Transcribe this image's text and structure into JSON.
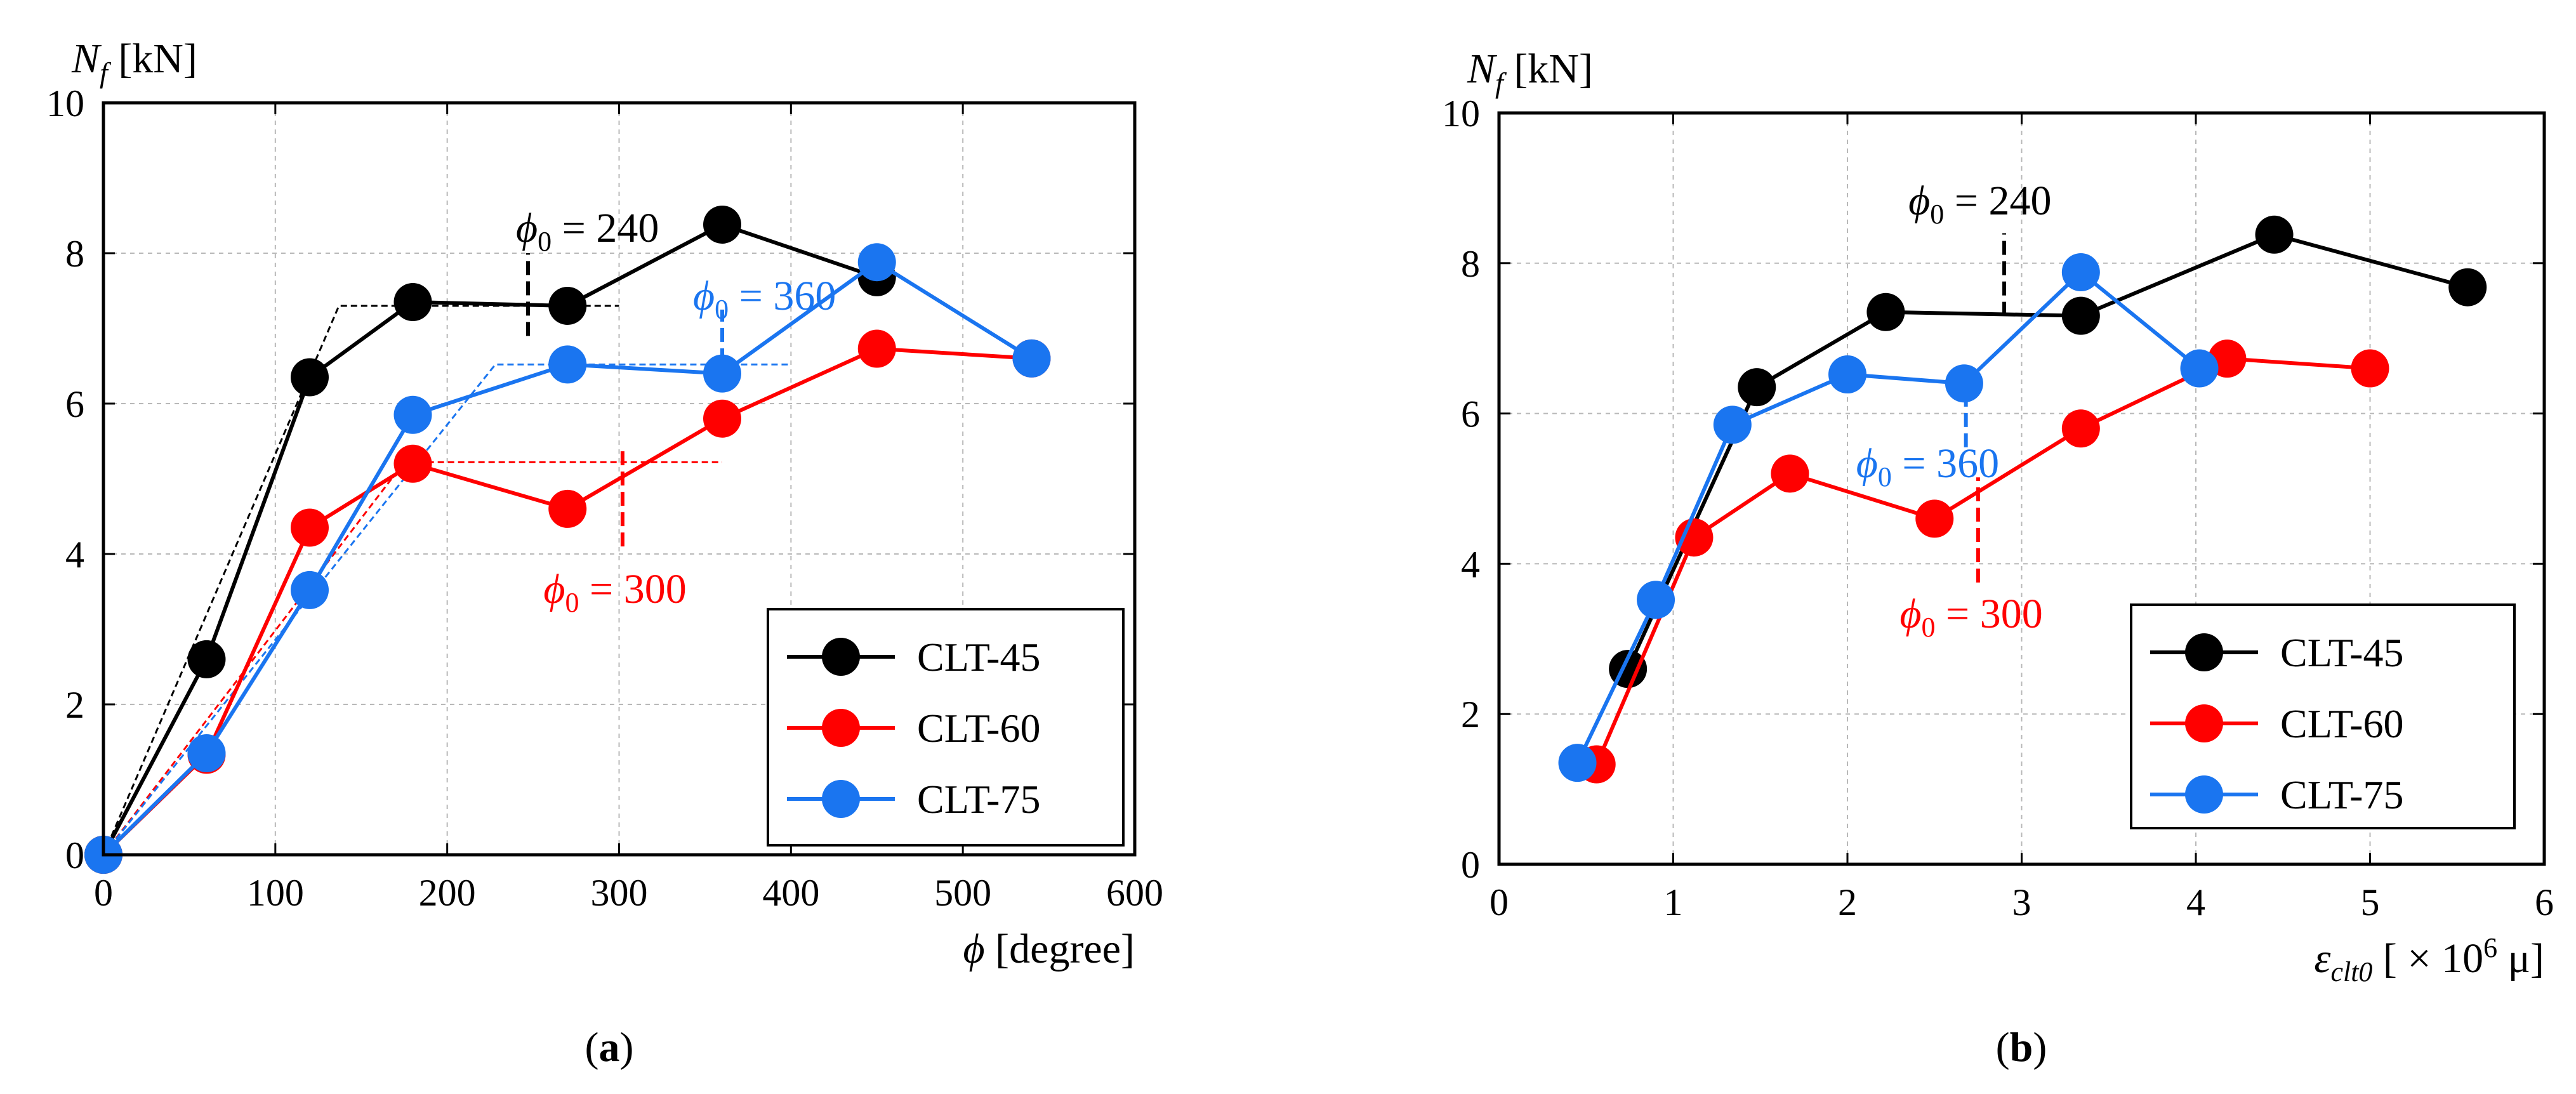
{
  "chart_data": [
    {
      "type": "line",
      "panel_label": "a",
      "ylabel_main": "N",
      "ylabel_sub": "f",
      "ylabel_unit": " [kN]",
      "xlabel_main": "ϕ",
      "xlabel_unit": " [degree]",
      "xlim": [
        0,
        600
      ],
      "ylim": [
        0,
        10
      ],
      "xticks": [
        "0",
        "100",
        "200",
        "300",
        "400",
        "500",
        "600"
      ],
      "yticks": [
        "0",
        "2",
        "4",
        "6",
        "8",
        "10"
      ],
      "grid": true,
      "legend_position": "bottom-right",
      "series": [
        {
          "name": "CLT-45",
          "color": "#000000",
          "x": [
            0,
            60,
            120,
            180,
            270,
            360,
            450
          ],
          "y": [
            0,
            2.6,
            6.35,
            7.35,
            7.3,
            8.38,
            7.68
          ]
        },
        {
          "name": "CLT-60",
          "color": "#ff0000",
          "x": [
            0,
            60,
            120,
            180,
            270,
            360,
            450,
            540
          ],
          "y": [
            0,
            1.33,
            4.35,
            5.2,
            4.6,
            5.8,
            6.73,
            6.6
          ]
        },
        {
          "name": "CLT-75",
          "color": "#1a75f0",
          "x": [
            0,
            60,
            120,
            180,
            270,
            360,
            450,
            540
          ],
          "y": [
            0,
            1.35,
            3.52,
            5.85,
            6.52,
            6.4,
            7.88,
            6.6
          ]
        }
      ],
      "bilinear_fits": [
        {
          "series": "CLT-45",
          "color": "#000000",
          "points": [
            [
              0,
              0
            ],
            [
              137,
              7.3
            ],
            [
              300,
              7.3
            ]
          ]
        },
        {
          "series": "CLT-60",
          "color": "#ff0000",
          "points": [
            [
              0,
              0
            ],
            [
              175,
              5.22
            ],
            [
              360,
              5.22
            ]
          ]
        },
        {
          "series": "CLT-75",
          "color": "#1a75f0",
          "points": [
            [
              0,
              0
            ],
            [
              228,
              6.52
            ],
            [
              400,
              6.52
            ]
          ]
        }
      ],
      "annotations": [
        {
          "text_main": "ϕ",
          "text_sub": "0",
          "text_rest": " = 240",
          "color": "#000000",
          "x": 240,
          "y": 8.15,
          "marker_x": 247,
          "marker_y0": 6.9,
          "marker_y1": 8.0
        },
        {
          "text_main": "ϕ",
          "text_sub": "0",
          "text_rest": " = 360",
          "color": "#1a75f0",
          "x": 343,
          "y": 7.25,
          "marker_x": 360,
          "marker_y0": 6.55,
          "marker_y1": 7.25
        },
        {
          "text_main": "ϕ",
          "text_sub": "0",
          "text_rest": " = 300",
          "color": "#ff0000",
          "x": 256,
          "y": 3.35,
          "marker_x": 302,
          "marker_y0": 4.1,
          "marker_y1": 5.45
        }
      ]
    },
    {
      "type": "line",
      "panel_label": "b",
      "ylabel_main": "N",
      "ylabel_sub": "f",
      "ylabel_unit": " [kN]",
      "xlabel_main": "ε",
      "xlabel_sub": "clt0",
      "xlabel_unit": " [ × 10",
      "xlabel_sup": "6",
      "xlabel_tail": " μ]",
      "xlim": [
        0,
        6
      ],
      "ylim": [
        0,
        10
      ],
      "xticks": [
        "0",
        "1",
        "2",
        "3",
        "4",
        "5",
        "6"
      ],
      "yticks": [
        "0",
        "2",
        "4",
        "6",
        "8",
        "10"
      ],
      "grid": true,
      "legend_position": "bottom-right",
      "series": [
        {
          "name": "CLT-45",
          "color": "#000000",
          "x": [
            0.74,
            1.48,
            2.22,
            3.34,
            4.45,
            5.56
          ],
          "y": [
            2.6,
            6.35,
            7.35,
            7.3,
            8.38,
            7.68
          ]
        },
        {
          "name": "CLT-60",
          "color": "#ff0000",
          "x": [
            0.56,
            1.12,
            1.67,
            2.5,
            3.34,
            4.18,
            5.0
          ],
          "y": [
            1.33,
            4.35,
            5.2,
            4.6,
            5.8,
            6.73,
            6.6
          ]
        },
        {
          "name": "CLT-75",
          "color": "#1a75f0",
          "x": [
            0.45,
            0.9,
            1.34,
            2.0,
            2.67,
            3.34,
            4.02
          ],
          "y": [
            1.35,
            3.52,
            5.85,
            6.52,
            6.4,
            7.88,
            6.6
          ]
        }
      ],
      "annotations": [
        {
          "text_main": "ϕ",
          "text_sub": "0",
          "text_rest": " = 240",
          "color": "#000000",
          "x": 2.35,
          "y": 8.65,
          "marker_x": 2.9,
          "marker_y0": 7.3,
          "marker_y1": 8.4
        },
        {
          "text_main": "ϕ",
          "text_sub": "0",
          "text_rest": " = 360",
          "color": "#1a75f0",
          "x": 2.05,
          "y": 5.15,
          "marker_x": 2.68,
          "marker_y0": 5.55,
          "marker_y1": 6.55
        },
        {
          "text_main": "ϕ",
          "text_sub": "0",
          "text_rest": " = 300",
          "color": "#ff0000",
          "x": 2.3,
          "y": 3.15,
          "marker_x": 2.75,
          "marker_y0": 3.75,
          "marker_y1": 5.15
        }
      ]
    }
  ]
}
